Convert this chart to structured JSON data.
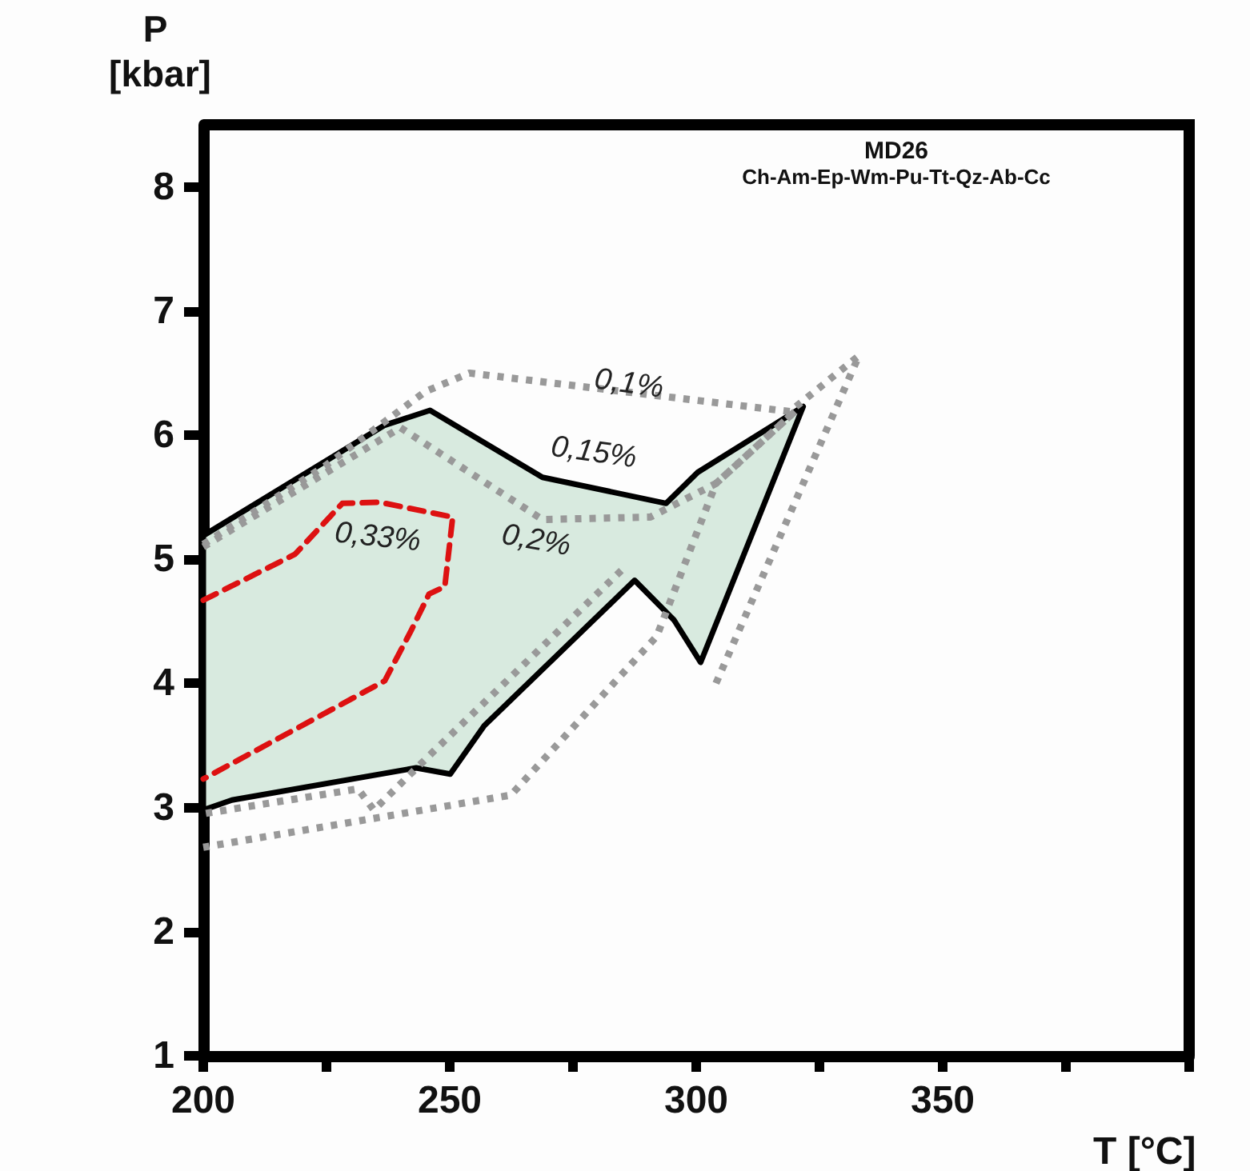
{
  "chart_data": {
    "type": "line",
    "title": "MD26",
    "subtitle": "Ch-Am-Ep-Wm-Pu-Tt-Qz-Ab-Cc",
    "xlabel": "T [°C]",
    "ylabel": "P [kbar]",
    "xlim": [
      200,
      400
    ],
    "ylim": [
      1,
      8.5
    ],
    "xticks": [
      200,
      {
        "value": 225,
        "label": null
      },
      250,
      {
        "value": 275,
        "label": null
      },
      300,
      {
        "value": 325,
        "label": null
      },
      350,
      {
        "value": 375,
        "label": null
      },
      {
        "value": 400,
        "label": null
      }
    ],
    "yticks": [
      1,
      2,
      3,
      4,
      5,
      6,
      7,
      8
    ],
    "grid": false,
    "marker": "none",
    "series": [
      {
        "color": "#999999",
        "line_style": "dotted",
        "x": [
          200,
          225,
          245,
          254,
          319,
          333,
          304
        ],
        "values": [
          5.12,
          5.76,
          6.35,
          6.5,
          6.19,
          6.64,
          4.0
        ]
      },
      {
        "color": "#999999",
        "line_style": "dotted",
        "x": [
          200,
          240,
          268.8,
          290.7,
          304,
          320
        ],
        "values": [
          5.1,
          6.06,
          5.32,
          5.34,
          5.61,
          6.19
        ]
      },
      {
        "color": "#999999",
        "line_style": "dotted",
        "x": [
          320,
          304,
          292,
          262.4,
          200
        ],
        "values": [
          6.19,
          5.61,
          4.38,
          3.1,
          2.68
        ]
      },
      {
        "color": "#999999",
        "line_style": "dotted",
        "x": [
          284.8,
          272,
          246.4,
          234.6,
          231.4,
          200
        ],
        "values": [
          4.91,
          4.42,
          3.44,
          2.98,
          3.15,
          2.95
        ]
      },
      {
        "type": "area",
        "color": "#d8eadf",
        "x": [
          200,
          236.8,
          246,
          268.8,
          293.9,
          300.3,
          321.7,
          300.9,
          295.5,
          287.5,
          257,
          250.1,
          243.2,
          205.8,
          200
        ],
        "values": [
          5.19,
          6.08,
          6.2,
          5.66,
          5.45,
          5.7,
          6.23,
          4.17,
          4.51,
          4.83,
          3.66,
          3.27,
          3.32,
          3.06,
          2.98
        ]
      },
      {
        "color": "#dd1111",
        "line_style": "dashed",
        "x": [
          200,
          218.6,
          228.2,
          235.7,
          250.6,
          249,
          245.8,
          242.1,
          236.8,
          200
        ],
        "values": [
          4.67,
          5.04,
          5.45,
          5.46,
          5.34,
          4.78,
          4.72,
          4.42,
          4.02,
          3.23
        ]
      }
    ],
    "annotations": [
      "0,1%",
      "0,15%",
      "0,2%",
      "0,33%"
    ]
  }
}
